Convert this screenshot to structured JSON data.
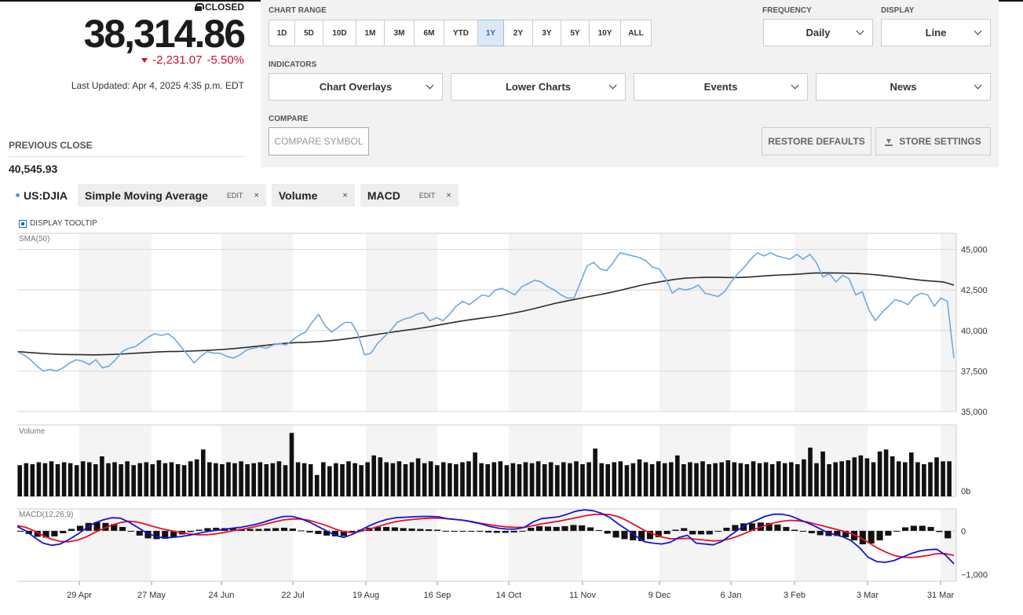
{
  "quote": {
    "status": "CLOSED",
    "price": "38,314.86",
    "change": "-2,231.07",
    "change_pct": "-5.50%",
    "last_updated": "Last Updated: Apr 4, 2025 4:35 p.m. EDT",
    "prev_close_label": "PREVIOUS CLOSE",
    "prev_close_value": "40,545.93"
  },
  "controls": {
    "chart_range_label": "CHART RANGE",
    "ranges": [
      "1D",
      "5D",
      "10D",
      "1M",
      "3M",
      "6M",
      "YTD",
      "1Y",
      "2Y",
      "3Y",
      "5Y",
      "10Y",
      "ALL"
    ],
    "active_range": "1Y",
    "frequency_label": "FREQUENCY",
    "frequency_value": "Daily",
    "display_label": "DISPLAY",
    "display_value": "Line",
    "indicators_label": "INDICATORS",
    "indicator_menus": [
      "Chart Overlays",
      "Lower Charts",
      "Events",
      "News"
    ],
    "compare_label": "COMPARE",
    "compare_placeholder": "COMPARE SYMBOL",
    "restore_label": "RESTORE DEFAULTS",
    "store_label": "STORE SETTINGS"
  },
  "legend": {
    "symbol": "US:DJIA",
    "chips": [
      {
        "name": "Simple Moving Average",
        "edit": "EDIT",
        "close": "×"
      },
      {
        "name": "Volume",
        "edit": "",
        "close": "×"
      },
      {
        "name": "MACD",
        "edit": "EDIT",
        "close": "×"
      }
    ],
    "tooltip_label": "DISPLAY TOOLTIP"
  },
  "colors": {
    "price_line": "#6fa8dc",
    "sma_line": "#2b2b2b",
    "macd_line": "#1515d0",
    "signal_line": "#e8102a",
    "down": "#c8102e",
    "active_range": "#dce9f5"
  },
  "chart_data": [
    {
      "type": "line",
      "panel": "price",
      "title": "SMA(50)",
      "x_tick_labels": [
        "29 Apr",
        "27 May",
        "24 Jun",
        "22 Jul",
        "19 Aug",
        "16 Sep",
        "14 Oct",
        "11 Nov",
        "9 Dec",
        "6 Jan",
        "3 Feb",
        "3 Mar",
        "31 Mar"
      ],
      "y_ticks": [
        35000,
        37500,
        40000,
        42500,
        45000
      ],
      "y_tick_labels": [
        "35,000",
        "37,500",
        "40,000",
        "42,500",
        "45,000"
      ],
      "ylim": [
        35000,
        46000
      ],
      "series": [
        {
          "name": "US:DJIA",
          "values": [
            38700,
            38500,
            38200,
            37800,
            37500,
            37600,
            37500,
            37700,
            38000,
            38200,
            38100,
            37900,
            38200,
            37700,
            37800,
            38200,
            38700,
            38900,
            39000,
            39300,
            39600,
            39800,
            39700,
            39800,
            39500,
            39000,
            38500,
            38000,
            38400,
            38700,
            38600,
            38600,
            38400,
            38300,
            38500,
            38800,
            38900,
            39000,
            38900,
            39100,
            39200,
            39100,
            39400,
            39700,
            39900,
            40500,
            41000,
            40300,
            39900,
            40200,
            40500,
            40500,
            39800,
            38500,
            38600,
            39200,
            39600,
            40000,
            40500,
            40700,
            40800,
            41000,
            41100,
            40600,
            40800,
            40600,
            41000,
            41500,
            41800,
            41600,
            41900,
            42200,
            42100,
            42500,
            42600,
            42400,
            42200,
            42700,
            42900,
            43100,
            43000,
            42700,
            42500,
            42200,
            42000,
            42000,
            43000,
            44000,
            44200,
            43800,
            43700,
            44200,
            44800,
            44700,
            44600,
            44500,
            44300,
            43900,
            43800,
            43200,
            42300,
            42600,
            42500,
            42600,
            42800,
            42300,
            42200,
            42100,
            42400,
            43000,
            43500,
            43900,
            44400,
            44800,
            44600,
            44800,
            44600,
            44500,
            44400,
            44700,
            44400,
            44700,
            44200,
            43300,
            43500,
            43000,
            43400,
            43200,
            42200,
            42400,
            41300,
            40600,
            41100,
            41500,
            41900,
            41800,
            41600,
            42100,
            42300,
            42200,
            41500,
            42000,
            41800,
            38300
          ]
        },
        {
          "name": "SMA(50)",
          "values": [
            38700,
            38650,
            38600,
            38560,
            38530,
            38520,
            38510,
            38500,
            38510,
            38530,
            38560,
            38600,
            38640,
            38680,
            38700,
            38710,
            38730,
            38760,
            38790,
            38830,
            38880,
            38940,
            39010,
            39080,
            39160,
            39220,
            39260,
            39280,
            39320,
            39370,
            39440,
            39520,
            39620,
            39720,
            39820,
            39920,
            40010,
            40100,
            40200,
            40320,
            40440,
            40560,
            40660,
            40750,
            40840,
            40940,
            41060,
            41200,
            41350,
            41520,
            41680,
            41820,
            41950,
            42080,
            42200,
            42330,
            42480,
            42640,
            42800,
            42930,
            43040,
            43150,
            43230,
            43260,
            43280,
            43280,
            43270,
            43270,
            43300,
            43350,
            43400,
            43430,
            43460,
            43500,
            43550,
            43560,
            43550,
            43540,
            43520,
            43480,
            43420,
            43350,
            43270,
            43180,
            43100,
            43050,
            43000,
            42800
          ]
        }
      ]
    },
    {
      "type": "bar",
      "panel": "volume",
      "title": "Volume",
      "y_tick_labels": [
        "0b"
      ],
      "series": [
        {
          "name": "Volume",
          "values": [
            3.2,
            3.4,
            3.3,
            3.5,
            3.4,
            3.6,
            3.3,
            3.5,
            3.4,
            3.2,
            3.6,
            3.5,
            3.3,
            4.1,
            3.4,
            3.5,
            3.3,
            3.6,
            3.2,
            3.4,
            3.5,
            3.3,
            3.7,
            3.4,
            3.5,
            3.3,
            3.2,
            3.6,
            3.8,
            4.8,
            3.5,
            3.4,
            3.3,
            3.5,
            3.4,
            3.6,
            3.3,
            3.4,
            3.5,
            3.3,
            3.4,
            3.6,
            3.2,
            6.5,
            3.5,
            3.4,
            3.3,
            2.2,
            3.5,
            3.1,
            3.4,
            3.3,
            3.6,
            3.4,
            3.2,
            3.5,
            4.2,
            4.0,
            3.5,
            3.4,
            3.6,
            3.3,
            3.5,
            3.9,
            3.4,
            3.6,
            3.2,
            3.5,
            3.4,
            3.3,
            3.5,
            3.6,
            4.5,
            3.4,
            3.3,
            3.5,
            3.6,
            3.2,
            3.4,
            3.3,
            3.5,
            3.4,
            3.6,
            3.3,
            3.5,
            3.2,
            3.5,
            3.4,
            3.6,
            3.3,
            3.5,
            4.9,
            3.4,
            3.3,
            3.5,
            3.6,
            3.2,
            3.4,
            3.8,
            3.5,
            3.3,
            3.6,
            3.4,
            3.5,
            4.2,
            3.3,
            3.5,
            3.4,
            3.6,
            3.3,
            3.4,
            3.5,
            3.7,
            3.5,
            3.4,
            3.3,
            3.6,
            3.4,
            3.5,
            3.3,
            3.6,
            3.4,
            3.5,
            3.3,
            3.8,
            5.0,
            3.4,
            4.6,
            3.3,
            3.5,
            3.6,
            3.7,
            4.0,
            4.2,
            3.9,
            3.5,
            4.6,
            4.8,
            4.1,
            3.6,
            3.5,
            4.5,
            3.5,
            3.3,
            3.5,
            4.0,
            3.6,
            3.6
          ]
        }
      ]
    },
    {
      "type": "line",
      "panel": "macd",
      "title": "MACD(12,26,9)",
      "y_ticks": [
        0,
        -1000
      ],
      "y_tick_labels": [
        "0",
        "−1,000"
      ],
      "ylim": [
        -1150,
        500
      ],
      "series": [
        {
          "name": "MACD",
          "values": [
            100,
            0,
            -150,
            -280,
            -330,
            -300,
            -200,
            -80,
            60,
            180,
            250,
            300,
            290,
            200,
            80,
            -40,
            -120,
            -160,
            -150,
            -130,
            -100,
            -60,
            -20,
            10,
            30,
            60,
            80,
            120,
            160,
            220,
            280,
            330,
            330,
            280,
            200,
            100,
            0,
            -100,
            -150,
            -80,
            20,
            120,
            200,
            260,
            300,
            310,
            320,
            330,
            330,
            320,
            280,
            260,
            240,
            200,
            160,
            100,
            60,
            40,
            40,
            80,
            200,
            280,
            300,
            320,
            380,
            450,
            480,
            460,
            400,
            300,
            150,
            20,
            -120,
            -250,
            -280,
            -300,
            -260,
            -150,
            -100,
            -280,
            -300,
            -320,
            -240,
            -100,
            40,
            160,
            240,
            330,
            380,
            380,
            340,
            260,
            180,
            90,
            -10,
            -80,
            -130,
            -220,
            -380,
            -600,
            -700,
            -720,
            -680,
            -600,
            -520,
            -460,
            -430,
            -420,
            -550,
            -750
          ]
        },
        {
          "name": "Signal",
          "values": [
            120,
            80,
            0,
            -110,
            -190,
            -240,
            -250,
            -210,
            -140,
            -40,
            50,
            130,
            190,
            220,
            200,
            150,
            90,
            40,
            0,
            -40,
            -70,
            -90,
            -90,
            -70,
            -40,
            0,
            30,
            70,
            110,
            160,
            210,
            250,
            270,
            270,
            240,
            180,
            120,
            40,
            -20,
            -40,
            -10,
            40,
            100,
            160,
            210,
            240,
            260,
            280,
            290,
            290,
            280,
            260,
            240,
            210,
            170,
            140,
            110,
            90,
            80,
            80,
            120,
            160,
            190,
            220,
            260,
            300,
            340,
            370,
            380,
            370,
            320,
            230,
            120,
            10,
            -70,
            -140,
            -180,
            -180,
            -170,
            -190,
            -210,
            -230,
            -220,
            -180,
            -110,
            -30,
            50,
            120,
            180,
            220,
            240,
            230,
            200,
            150,
            100,
            50,
            0,
            -60,
            -140,
            -260,
            -380,
            -480,
            -560,
            -600,
            -610,
            -590,
            -560,
            -520,
            -520,
            -560
          ]
        }
      ]
    }
  ]
}
